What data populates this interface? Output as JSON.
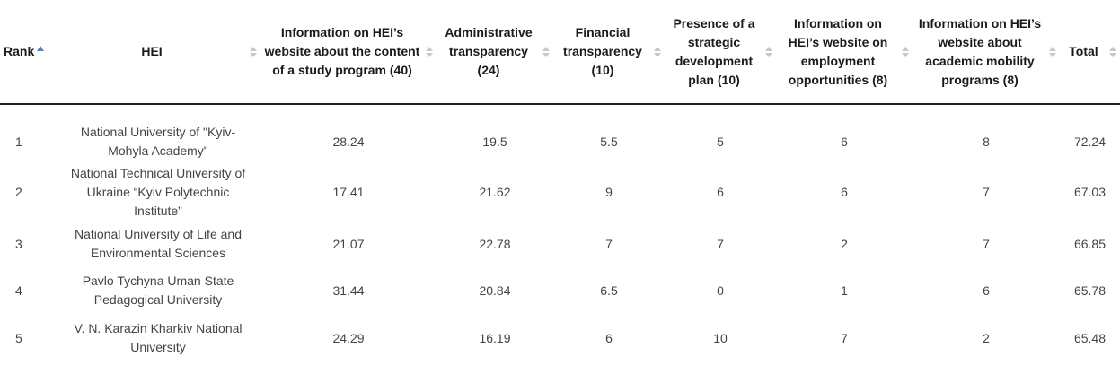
{
  "table": {
    "headers": {
      "rank": "Rank",
      "hei": "HEI",
      "content": "Information on HEI’s website about the content of a study program (40)",
      "admin": "Administrative transparency (24)",
      "financial": "Financial transparency (10)",
      "strategic": "Presence of a strategic development plan (10)",
      "employment": "Information on HEI’s website on employment opportunities (8)",
      "mobility": "Information on HEI’s website about academic mobility programs (8)",
      "total": "Total"
    },
    "sorted_by": "Rank",
    "sort_direction": "ascending",
    "accent_color": "#5b7bd5",
    "rows": [
      {
        "rank": "1",
        "hei": "National University of \"Kyiv-Mohyla Academy\"",
        "content": "28.24",
        "admin": "19.5",
        "financial": "5.5",
        "strategic": "5",
        "employment": "6",
        "mobility": "8",
        "total": "72.24"
      },
      {
        "rank": "2",
        "hei": "National Technical University of Ukraine “Kyiv Polytechnic Institute”",
        "content": "17.41",
        "admin": "21.62",
        "financial": "9",
        "strategic": "6",
        "employment": "6",
        "mobility": "7",
        "total": "67.03"
      },
      {
        "rank": "3",
        "hei": "National University of Life and Environmental Sciences",
        "content": "21.07",
        "admin": "22.78",
        "financial": "7",
        "strategic": "7",
        "employment": "2",
        "mobility": "7",
        "total": "66.85"
      },
      {
        "rank": "4",
        "hei": "Pavlo Tychyna Uman State Pedagogical University",
        "content": "31.44",
        "admin": "20.84",
        "financial": "6.5",
        "strategic": "0",
        "employment": "1",
        "mobility": "6",
        "total": "65.78"
      },
      {
        "rank": "5",
        "hei": "V. N. Karazin Kharkiv National University",
        "content": "24.29",
        "admin": "16.19",
        "financial": "6",
        "strategic": "10",
        "employment": "7",
        "mobility": "2",
        "total": "65.48"
      }
    ]
  }
}
